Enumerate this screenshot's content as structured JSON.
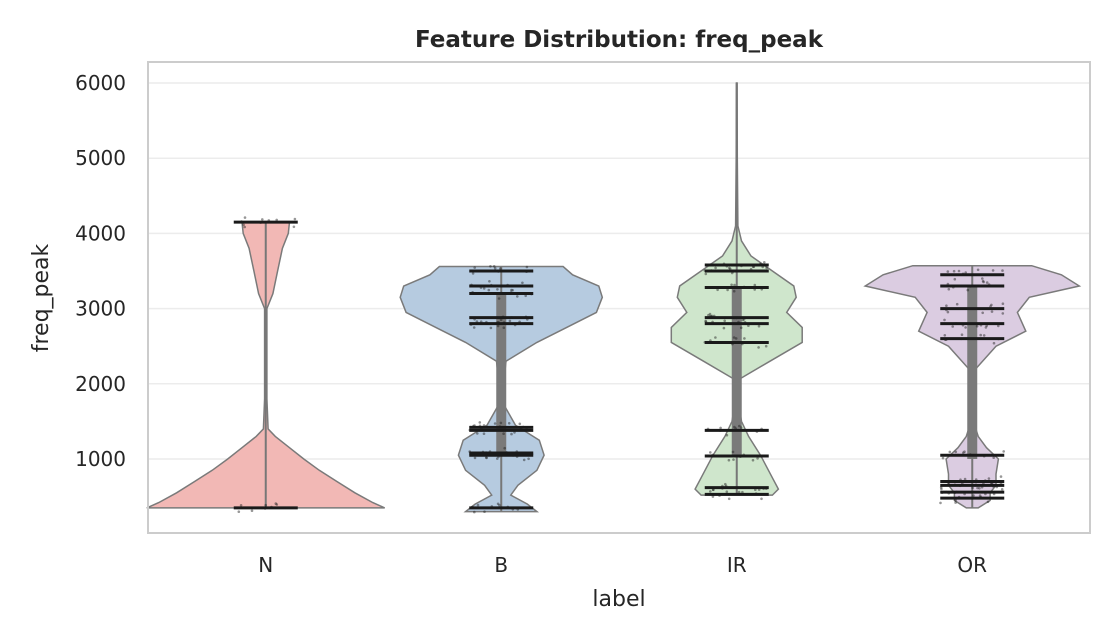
{
  "chart_data": {
    "type": "violin",
    "title": "Feature Distribution: freq_peak",
    "xlabel": "label",
    "ylabel": "freq_peak",
    "categories": [
      "N",
      "B",
      "IR",
      "OR"
    ],
    "ylim": [
      0,
      6300
    ],
    "yticks": [
      1000,
      2000,
      3000,
      4000,
      5000,
      6000
    ],
    "grid": true,
    "colors": {
      "N": "#f2b8b5",
      "B": "#b6cbe0",
      "IR": "#cfe6cc",
      "OR": "#dbcce1"
    },
    "series": [
      {
        "name": "N",
        "min": 350,
        "q1": 350,
        "median": 350,
        "q3": 350,
        "max": 4150,
        "density": [
          [
            350,
            1.0
          ],
          [
            420,
            0.9
          ],
          [
            550,
            0.75
          ],
          [
            700,
            0.6
          ],
          [
            850,
            0.45
          ],
          [
            1000,
            0.32
          ],
          [
            1150,
            0.2
          ],
          [
            1300,
            0.08
          ],
          [
            1400,
            0.02
          ],
          [
            1800,
            0.01
          ],
          [
            3000,
            0.01
          ],
          [
            3200,
            0.06
          ],
          [
            3500,
            0.1
          ],
          [
            3800,
            0.14
          ],
          [
            4000,
            0.19
          ],
          [
            4150,
            0.2
          ]
        ],
        "dot_bands": [
          350,
          4150
        ]
      },
      {
        "name": "B",
        "min": 300,
        "q1": 1050,
        "median": 2750,
        "q3": 3200,
        "max": 3560,
        "density": [
          [
            300,
            0.3
          ],
          [
            400,
            0.22
          ],
          [
            520,
            0.08
          ],
          [
            650,
            0.14
          ],
          [
            850,
            0.3
          ],
          [
            1050,
            0.36
          ],
          [
            1250,
            0.32
          ],
          [
            1450,
            0.12
          ],
          [
            1700,
            0.03
          ],
          [
            2000,
            0.02
          ],
          [
            2300,
            0.04
          ],
          [
            2550,
            0.3
          ],
          [
            2750,
            0.55
          ],
          [
            2950,
            0.8
          ],
          [
            3150,
            0.85
          ],
          [
            3300,
            0.82
          ],
          [
            3450,
            0.6
          ],
          [
            3560,
            0.52
          ]
        ],
        "dot_bands": [
          350,
          1050,
          1080,
          1380,
          1420,
          2800,
          2880,
          3200,
          3300,
          3500
        ]
      },
      {
        "name": "IR",
        "min": 520,
        "q1": 1050,
        "median": 2850,
        "q3": 3300,
        "max": 6000,
        "density": [
          [
            520,
            0.3
          ],
          [
            600,
            0.35
          ],
          [
            750,
            0.3
          ],
          [
            1050,
            0.2
          ],
          [
            1300,
            0.1
          ],
          [
            1500,
            0.04
          ],
          [
            1800,
            0.01
          ],
          [
            2050,
            0.01
          ],
          [
            2300,
            0.28
          ],
          [
            2550,
            0.55
          ],
          [
            2750,
            0.55
          ],
          [
            2950,
            0.42
          ],
          [
            3150,
            0.5
          ],
          [
            3300,
            0.48
          ],
          [
            3500,
            0.3
          ],
          [
            3700,
            0.12
          ],
          [
            3900,
            0.04
          ],
          [
            4100,
            0.01
          ],
          [
            5000,
            0.005
          ],
          [
            6000,
            0.003
          ]
        ],
        "dot_bands": [
          530,
          620,
          1040,
          1380,
          2550,
          2800,
          2880,
          3280,
          3500,
          3580
        ]
      },
      {
        "name": "OR",
        "min": 350,
        "q1": 1000,
        "median": 3000,
        "q3": 3300,
        "max": 3570,
        "density": [
          [
            350,
            0.05
          ],
          [
            450,
            0.15
          ],
          [
            550,
            0.15
          ],
          [
            650,
            0.2
          ],
          [
            800,
            0.2
          ],
          [
            1000,
            0.22
          ],
          [
            1150,
            0.12
          ],
          [
            1300,
            0.05
          ],
          [
            1500,
            0.01
          ],
          [
            1800,
            0.01
          ],
          [
            2200,
            0.03
          ],
          [
            2500,
            0.2
          ],
          [
            2700,
            0.45
          ],
          [
            2950,
            0.38
          ],
          [
            3150,
            0.48
          ],
          [
            3300,
            0.9
          ],
          [
            3450,
            0.75
          ],
          [
            3570,
            0.5
          ]
        ],
        "dot_bands": [
          480,
          560,
          650,
          700,
          1050,
          2600,
          2800,
          3000,
          3300,
          3450
        ]
      }
    ]
  }
}
